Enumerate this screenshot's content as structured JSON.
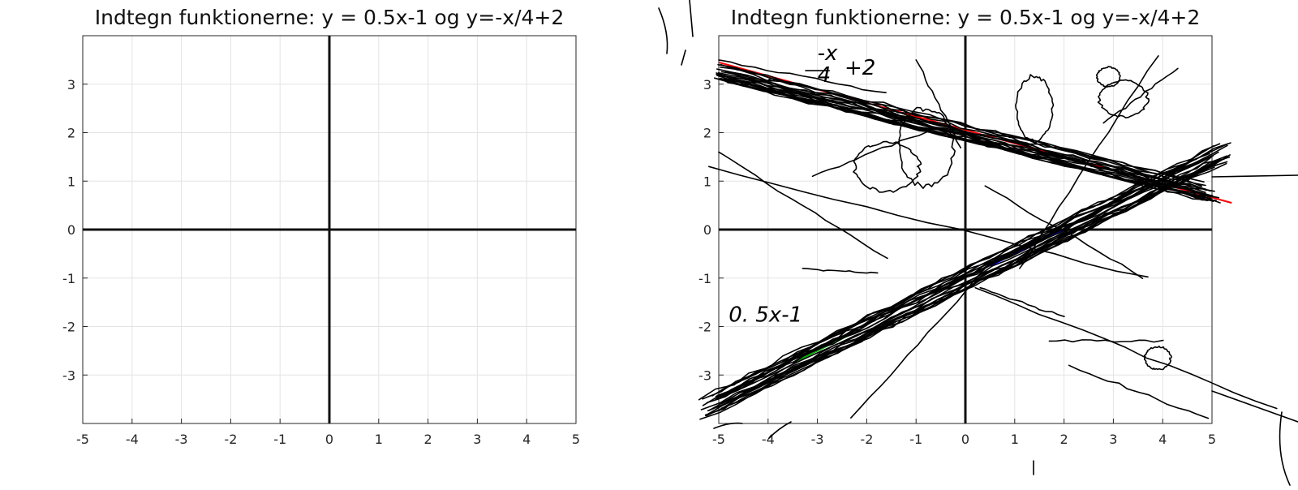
{
  "chart_data": [
    {
      "type": "line",
      "title": "Indtegn funktionerne: y = 0.5x-1 og y=-x/4+2",
      "xlabel": "",
      "ylabel": "",
      "xlim": [
        -5,
        5
      ],
      "ylim": [
        -4,
        4
      ],
      "xticks": [
        -5,
        -4,
        -3,
        -2,
        -1,
        0,
        1,
        2,
        3,
        4,
        5
      ],
      "yticks": [
        -3,
        -2,
        -1,
        0,
        1,
        2,
        3
      ],
      "grid": true,
      "series": []
    },
    {
      "type": "line",
      "title": "Indtegn funktionerne: y = 0.5x-1 og y=-x/4+2",
      "xlabel": "",
      "ylabel": "",
      "xlim": [
        -5,
        5
      ],
      "ylim": [
        -4,
        4
      ],
      "xticks": [
        -5,
        -4,
        -3,
        -2,
        -1,
        0,
        1,
        2,
        3,
        4,
        5
      ],
      "yticks": [
        -3,
        -2,
        -1,
        0,
        1,
        2,
        3
      ],
      "grid": true,
      "series": [
        {
          "color": "#ff0000",
          "x": [
            -5,
            5.4
          ],
          "y": [
            3.45,
            0.55
          ]
        },
        {
          "color": "#0000ff",
          "x": [
            0.5,
            2
          ],
          "y": [
            -0.75,
            0.0
          ]
        },
        {
          "color": "#00aa00",
          "x": [
            -3.4,
            -2.3
          ],
          "y": [
            -2.7,
            -2.15
          ]
        }
      ],
      "annotations": [
        {
          "text": "-x",
          "x": -3.0,
          "y": 3.5
        },
        {
          "text": "4",
          "x": -3.0,
          "y": 3.05
        },
        {
          "text": "+2",
          "x": -2.45,
          "y": 3.2
        },
        {
          "text": "0. 5x-1",
          "x": -4.8,
          "y": -1.9
        }
      ]
    }
  ]
}
